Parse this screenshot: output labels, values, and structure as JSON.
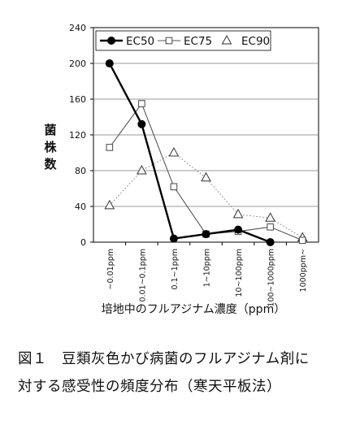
{
  "chart_data": {
    "type": "line",
    "ylabel": "菌株数",
    "xlabel": "培地中のフルアジナム濃度（ppm）",
    "ylim": [
      0,
      240
    ],
    "yticks": [
      0,
      40,
      80,
      120,
      160,
      200,
      240
    ],
    "categories": [
      "~0.01ppm",
      "0.01~0.1ppm",
      "0.1~1ppm",
      "1~10ppm",
      "10~100ppm",
      "100~1000ppm",
      "1000ppm~"
    ],
    "legend_position": "top-left",
    "grid": true,
    "series": [
      {
        "name": "EC50",
        "marker": "filled-circle",
        "line": "solid-bold",
        "color": "#000000",
        "values": [
          200,
          132,
          4,
          9,
          14,
          0,
          null
        ]
      },
      {
        "name": "EC75",
        "marker": "open-square",
        "line": "solid-thin",
        "color": "#555555",
        "values": [
          106,
          155,
          62,
          9,
          12,
          17,
          2
        ]
      },
      {
        "name": "EC90",
        "marker": "open-triangle",
        "line": "dotted",
        "color": "#888888",
        "values": [
          41,
          80,
          100,
          72,
          31,
          27,
          5
        ]
      }
    ]
  },
  "caption": {
    "line1": "図１　豆類灰色かび病菌のフルアジナム剤に",
    "line2": "対する感受性の頻度分布（寒天平板法）"
  }
}
